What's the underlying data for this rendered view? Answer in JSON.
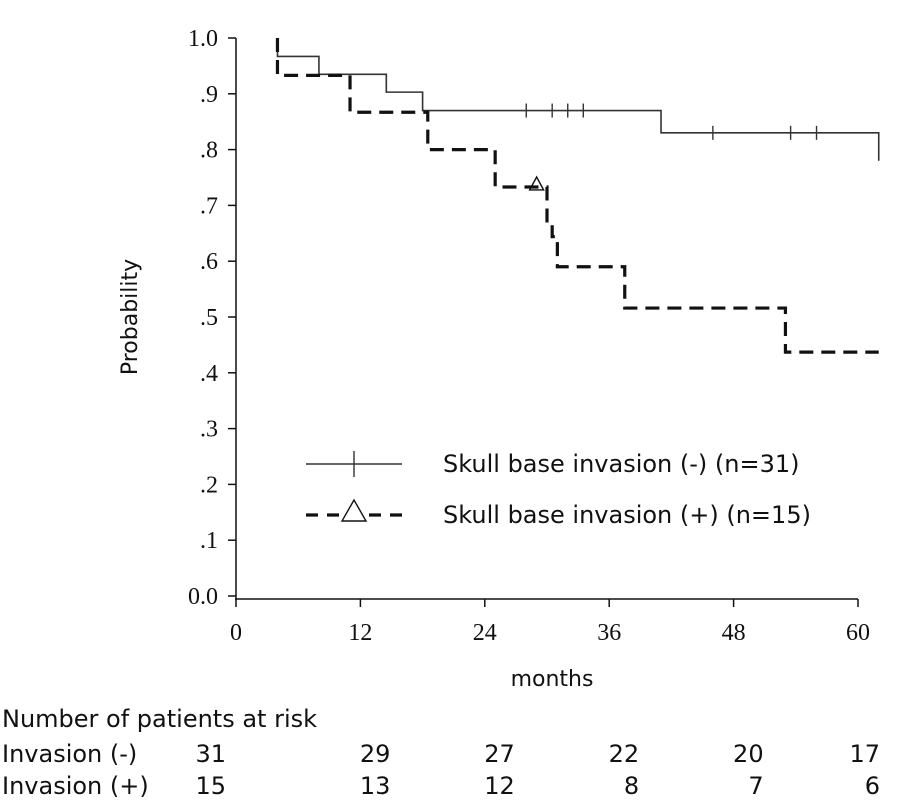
{
  "chart_data": {
    "type": "line",
    "title": "",
    "xlabel": "months",
    "ylabel": "Probability",
    "xlim": [
      0,
      60
    ],
    "ylim": [
      0,
      1.0
    ],
    "x_ticks": [
      "0",
      "12",
      "24",
      "36",
      "48",
      "60"
    ],
    "y_ticks": [
      "0.0",
      ".1",
      ".2",
      ".3",
      ".4",
      ".5",
      ".6",
      ".7",
      ".8",
      ".9",
      "1.0"
    ],
    "grid": false,
    "legend_position": "lower-right",
    "series": [
      {
        "name": "Skull base invasion (-) (n=31)",
        "style": "solid",
        "color": "#333333",
        "steps": [
          [
            4,
            1.0
          ],
          [
            4,
            0.967
          ],
          [
            8,
            0.935
          ],
          [
            14.5,
            0.903
          ],
          [
            18,
            0.87
          ],
          [
            41,
            0.83
          ],
          [
            62,
            0.78
          ]
        ],
        "censor_marks": [
          [
            28,
            0.87
          ],
          [
            30.5,
            0.87
          ],
          [
            32,
            0.87
          ],
          [
            33.5,
            0.87
          ],
          [
            46,
            0.83
          ],
          [
            53.5,
            0.83
          ],
          [
            56,
            0.83
          ]
        ],
        "censor_symbol": "+"
      },
      {
        "name": "Skull base invasion (+) (n=15)",
        "style": "dashed",
        "color": "#111111",
        "steps": [
          [
            4,
            1.0
          ],
          [
            4,
            0.933
          ],
          [
            11,
            0.867
          ],
          [
            18.5,
            0.8
          ],
          [
            25,
            0.733
          ],
          [
            30,
            0.667
          ],
          [
            30.5,
            0.644
          ],
          [
            31,
            0.59
          ],
          [
            37.5,
            0.516
          ],
          [
            53,
            0.437
          ],
          [
            62,
            0.437
          ]
        ],
        "censor_marks": [
          [
            29,
            0.733
          ]
        ],
        "censor_symbol": "triangle"
      }
    ]
  },
  "risk_table": {
    "title": "Number of patients at risk",
    "rows": [
      {
        "label": "Invasion (-)",
        "values": [
          "31",
          "29",
          "27",
          "22",
          "20",
          "17"
        ]
      },
      {
        "label": "Invasion (+)",
        "values": [
          "15",
          "13",
          "12",
          "8",
          "7",
          "6"
        ]
      }
    ]
  }
}
